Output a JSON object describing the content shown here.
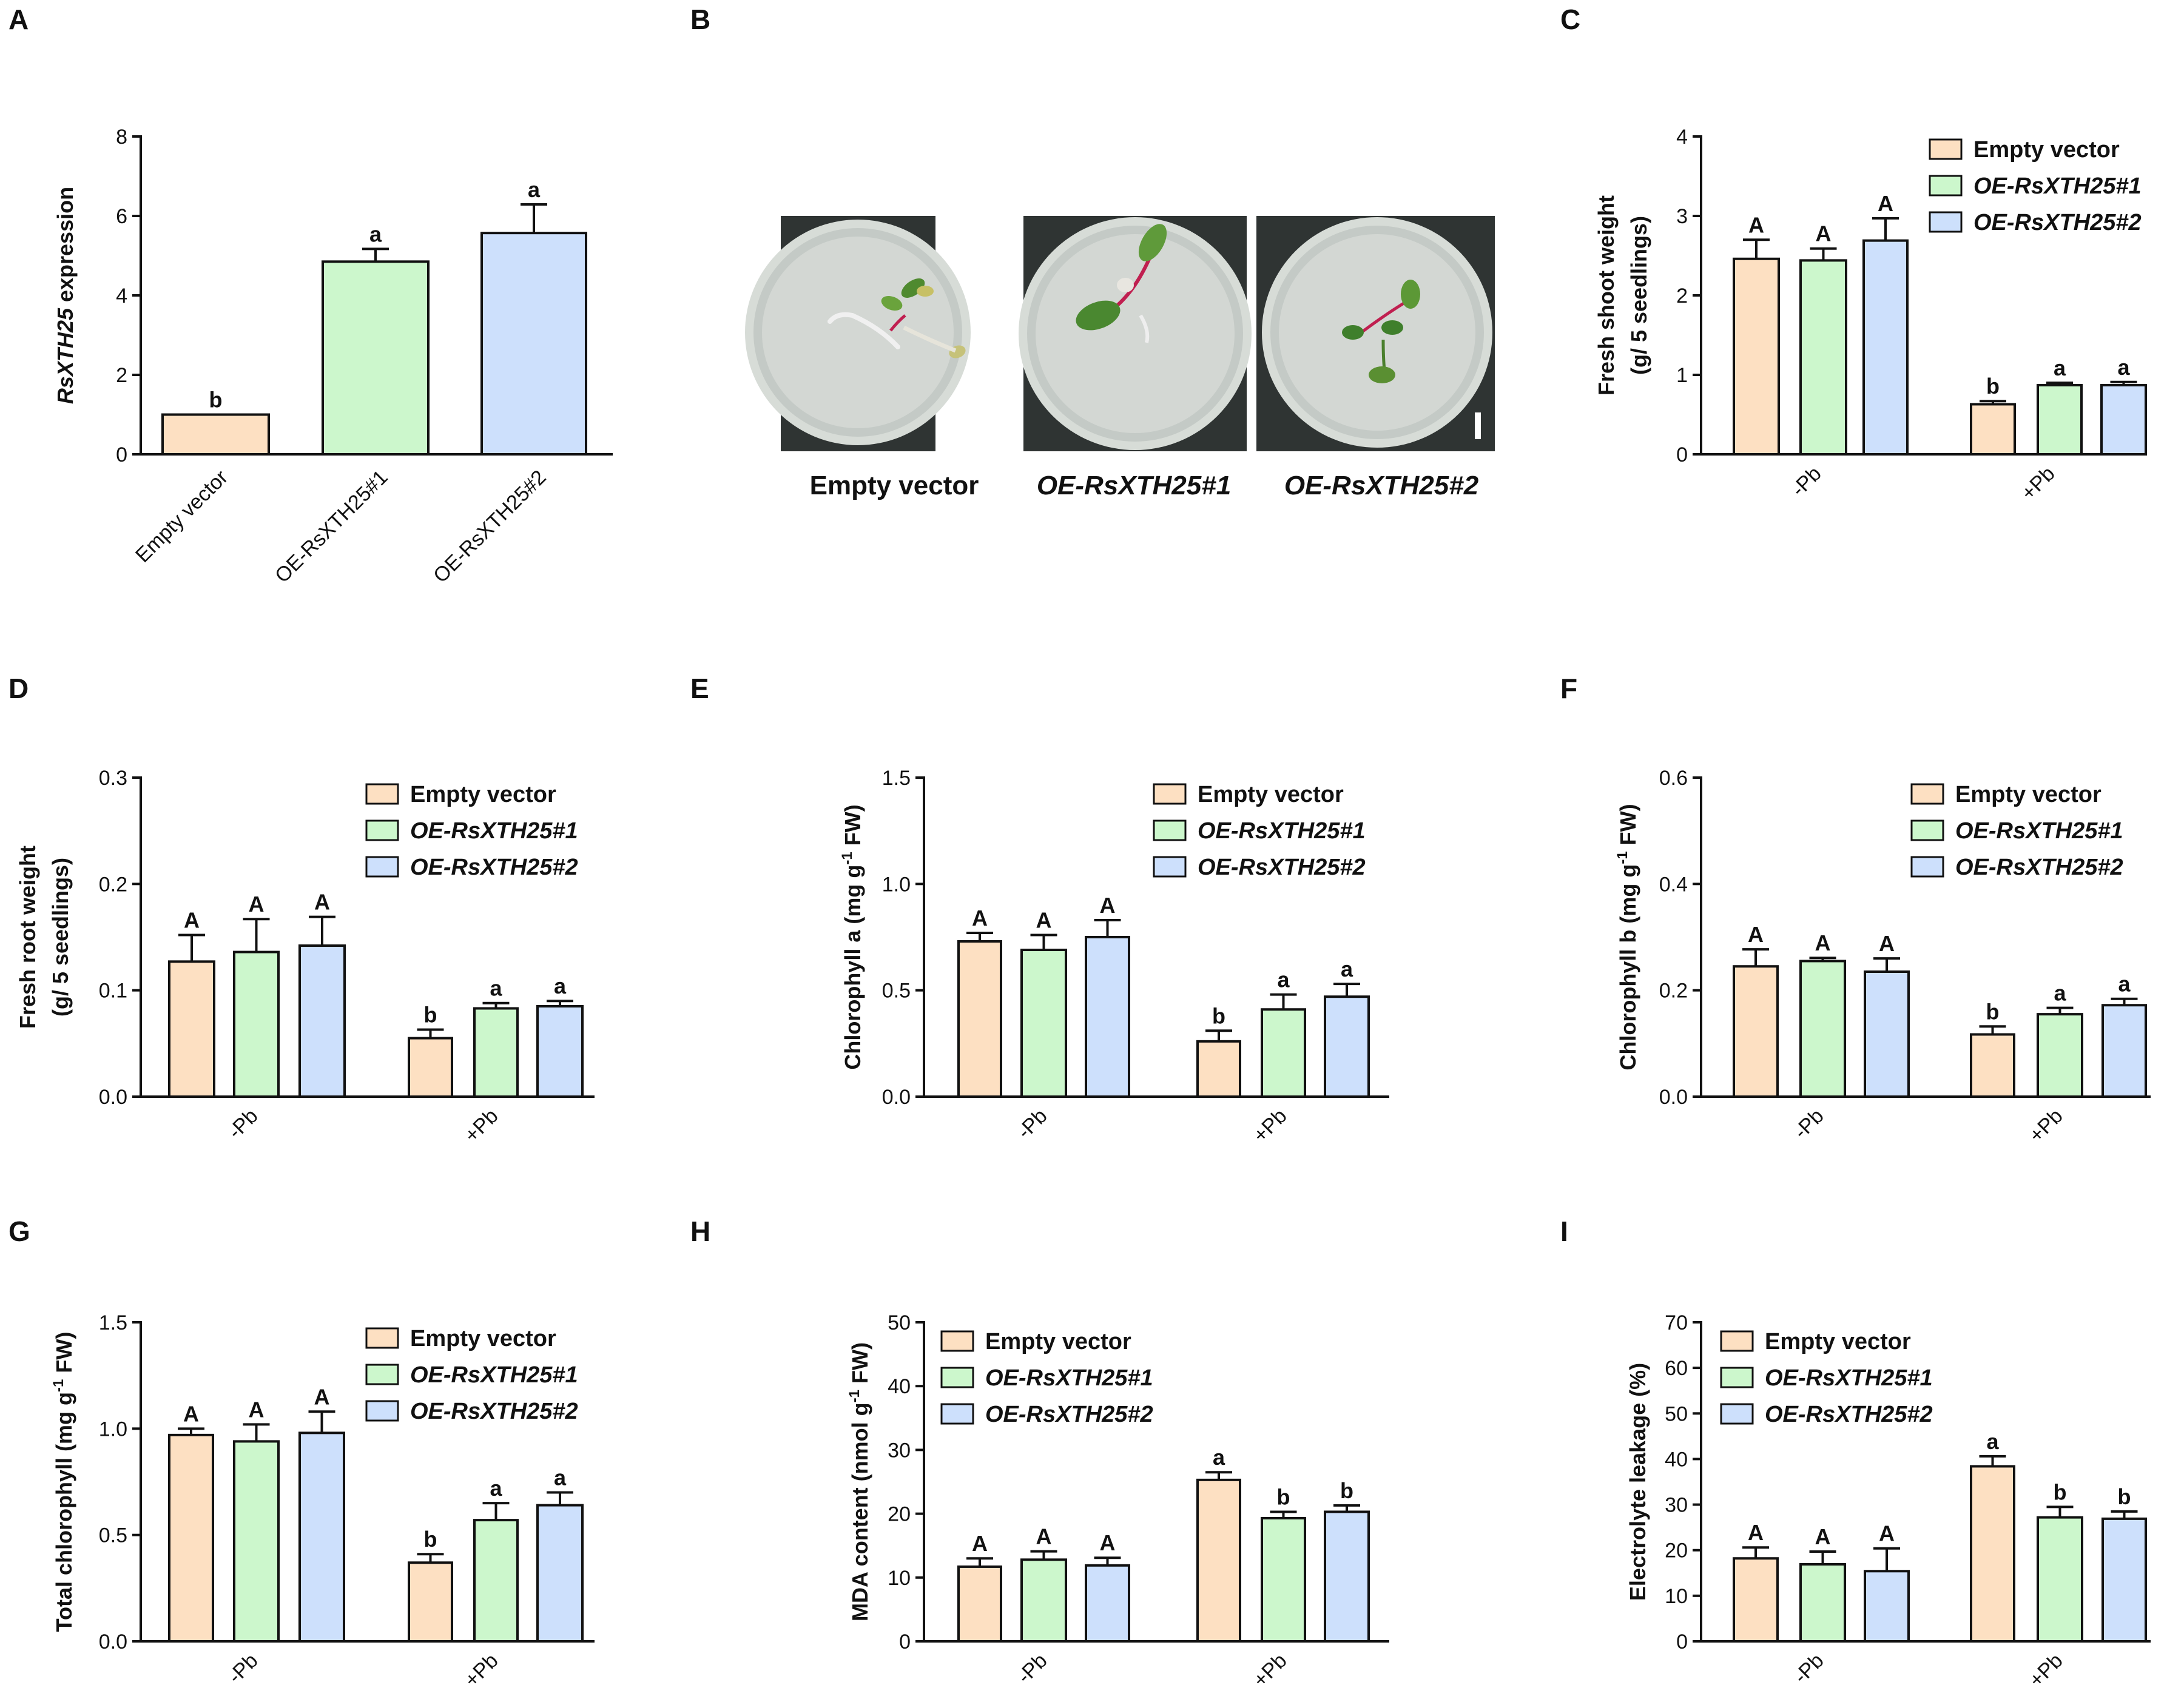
{
  "figure": {
    "legend": [
      "Empty vector",
      "OE-RsXTH25#1",
      "OE-RsXTH25#2"
    ],
    "colors": {
      "empty": "#fde0c2",
      "oe1": "#ccf7cc",
      "oe2": "#cde0fc",
      "stroke": "#111111"
    }
  },
  "photos": {
    "letter": "B",
    "captions": [
      "Empty vector",
      "OE-RsXTH25#1",
      "OE-RsXTH25#2"
    ]
  },
  "chart_data": [
    {
      "letter": "A",
      "type": "bar",
      "ylabel": "RsXTH25 expression",
      "ylabel_italic_part": "RsXTH25",
      "ylabel_rest": " expression",
      "ylim": [
        0,
        8
      ],
      "yticks": [
        0,
        2,
        4,
        6,
        8
      ],
      "ytick_labels": [
        "0",
        "2",
        "4",
        "6",
        "8"
      ],
      "categories": [
        "Empty vector",
        "OE-RsXTH25#1",
        "OE-RsXTH25#2"
      ],
      "values": [
        1.0,
        4.85,
        5.57
      ],
      "errors": [
        0.0,
        0.32,
        0.72
      ],
      "letters": [
        "b",
        "a",
        "a"
      ]
    },
    {
      "letter": "C",
      "type": "bar",
      "ylabel": "Fresh shoot weight|(g/ 5 seedlings)",
      "ylim": [
        0,
        4
      ],
      "yticks": [
        0,
        1,
        2,
        3,
        4
      ],
      "ytick_labels": [
        "0",
        "1",
        "2",
        "3",
        "4"
      ],
      "groups": [
        "-Pb",
        "+Pb"
      ],
      "series": [
        {
          "name": "Empty vector",
          "values": [
            2.46,
            0.63
          ],
          "errors": [
            0.24,
            0.04
          ],
          "letters": [
            "A",
            "b"
          ]
        },
        {
          "name": "OE-RsXTH25#1",
          "values": [
            2.44,
            0.87
          ],
          "errors": [
            0.15,
            0.03
          ],
          "letters": [
            "A",
            "a"
          ]
        },
        {
          "name": "OE-RsXTH25#2",
          "values": [
            2.69,
            0.87
          ],
          "errors": [
            0.28,
            0.04
          ],
          "letters": [
            "A",
            "a"
          ]
        }
      ]
    },
    {
      "letter": "D",
      "type": "bar",
      "ylabel": "Fresh root weight|(g/ 5 seedlings)",
      "ylim": [
        0,
        0.3
      ],
      "yticks": [
        0,
        0.1,
        0.2,
        0.3
      ],
      "ytick_labels": [
        "0.0",
        "0.1",
        "0.2",
        "0.3"
      ],
      "groups": [
        "-Pb",
        "+Pb"
      ],
      "series": [
        {
          "name": "Empty vector",
          "values": [
            0.127,
            0.055
          ],
          "errors": [
            0.025,
            0.008
          ],
          "letters": [
            "A",
            "b"
          ]
        },
        {
          "name": "OE-RsXTH25#1",
          "values": [
            0.136,
            0.083
          ],
          "errors": [
            0.031,
            0.005
          ],
          "letters": [
            "A",
            "a"
          ]
        },
        {
          "name": "OE-RsXTH25#2",
          "values": [
            0.142,
            0.085
          ],
          "errors": [
            0.027,
            0.005
          ],
          "letters": [
            "A",
            "a"
          ]
        }
      ]
    },
    {
      "letter": "E",
      "type": "bar",
      "ylabel": "Chlorophyll a (mg g-1 FW)",
      "ylabel_pre": "Chlorophyll a (mg g",
      "ylabel_sup": "-1",
      "ylabel_post": " FW)",
      "ylim": [
        0,
        1.5
      ],
      "yticks": [
        0,
        0.5,
        1.0,
        1.5
      ],
      "ytick_labels": [
        "0.0",
        "0.5",
        "1.0",
        "1.5"
      ],
      "groups": [
        "-Pb",
        "+Pb"
      ],
      "series": [
        {
          "name": "Empty vector",
          "values": [
            0.73,
            0.26
          ],
          "errors": [
            0.04,
            0.05
          ],
          "letters": [
            "A",
            "b"
          ]
        },
        {
          "name": "OE-RsXTH25#1",
          "values": [
            0.69,
            0.41
          ],
          "errors": [
            0.07,
            0.07
          ],
          "letters": [
            "A",
            "a"
          ]
        },
        {
          "name": "OE-RsXTH25#2",
          "values": [
            0.75,
            0.47
          ],
          "errors": [
            0.08,
            0.06
          ],
          "letters": [
            "A",
            "a"
          ]
        }
      ]
    },
    {
      "letter": "F",
      "type": "bar",
      "ylabel": "Chlorophyll b (mg g-1 FW)",
      "ylabel_pre": "Chlorophyll b (mg g",
      "ylabel_sup": "-1",
      "ylabel_post": " FW)",
      "ylim": [
        0,
        0.6
      ],
      "yticks": [
        0,
        0.2,
        0.4,
        0.6
      ],
      "ytick_labels": [
        "0.0",
        "0.2",
        "0.4",
        "0.6"
      ],
      "groups": [
        "-Pb",
        "+Pb"
      ],
      "series": [
        {
          "name": "Empty vector",
          "values": [
            0.245,
            0.117
          ],
          "errors": [
            0.032,
            0.015
          ],
          "letters": [
            "A",
            "b"
          ]
        },
        {
          "name": "OE-RsXTH25#1",
          "values": [
            0.255,
            0.155
          ],
          "errors": [
            0.006,
            0.012
          ],
          "letters": [
            "A",
            "a"
          ]
        },
        {
          "name": "OE-RsXTH25#2",
          "values": [
            0.235,
            0.172
          ],
          "errors": [
            0.025,
            0.012
          ],
          "letters": [
            "A",
            "a"
          ]
        }
      ]
    },
    {
      "letter": "G",
      "type": "bar",
      "ylabel": "Total chlorophyll (mg g-1 FW)",
      "ylabel_pre": "Total chlorophyll  (mg g",
      "ylabel_sup": "-1",
      "ylabel_post": " FW)",
      "ylim": [
        0,
        1.5
      ],
      "yticks": [
        0,
        0.5,
        1.0,
        1.5
      ],
      "ytick_labels": [
        "0.0",
        "0.5",
        "1.0",
        "1.5"
      ],
      "groups": [
        "-Pb",
        "+Pb"
      ],
      "series": [
        {
          "name": "Empty vector",
          "values": [
            0.97,
            0.37
          ],
          "errors": [
            0.03,
            0.04
          ],
          "letters": [
            "A",
            "b"
          ]
        },
        {
          "name": "OE-RsXTH25#1",
          "values": [
            0.94,
            0.57
          ],
          "errors": [
            0.08,
            0.08
          ],
          "letters": [
            "A",
            "a"
          ]
        },
        {
          "name": "OE-RsXTH25#2",
          "values": [
            0.98,
            0.64
          ],
          "errors": [
            0.1,
            0.06
          ],
          "letters": [
            "A",
            "a"
          ]
        }
      ]
    },
    {
      "letter": "H",
      "type": "bar",
      "ylabel": "MDA content (nmol g-1 FW)",
      "ylabel_pre": "MDA content (nmol g",
      "ylabel_sup": "-1",
      "ylabel_post": " FW)",
      "ylim": [
        0,
        50
      ],
      "yticks": [
        0,
        10,
        20,
        30,
        40,
        50
      ],
      "ytick_labels": [
        "0",
        "10",
        "20",
        "30",
        "40",
        "50"
      ],
      "groups": [
        "-Pb",
        "+Pb"
      ],
      "series": [
        {
          "name": "Empty vector",
          "values": [
            11.7,
            25.3
          ],
          "errors": [
            1.3,
            1.2
          ],
          "letters": [
            "A",
            "a"
          ]
        },
        {
          "name": "OE-RsXTH25#1",
          "values": [
            12.8,
            19.3
          ],
          "errors": [
            1.3,
            1.0
          ],
          "letters": [
            "A",
            "b"
          ]
        },
        {
          "name": "OE-RsXTH25#2",
          "values": [
            11.9,
            20.3
          ],
          "errors": [
            1.2,
            1.0
          ],
          "letters": [
            "A",
            "b"
          ]
        }
      ]
    },
    {
      "letter": "I",
      "type": "bar",
      "ylabel": "Electrolyte leakage (%)",
      "ylim": [
        0,
        70
      ],
      "yticks": [
        0,
        10,
        20,
        30,
        40,
        50,
        60,
        70
      ],
      "ytick_labels": [
        "0",
        "10",
        "20",
        "30",
        "40",
        "50",
        "60",
        "70"
      ],
      "groups": [
        "-Pb",
        "+Pb"
      ],
      "series": [
        {
          "name": "Empty vector",
          "values": [
            18.2,
            38.4
          ],
          "errors": [
            2.4,
            2.2
          ],
          "letters": [
            "A",
            "a"
          ]
        },
        {
          "name": "OE-RsXTH25#1",
          "values": [
            16.9,
            27.2
          ],
          "errors": [
            2.8,
            2.3
          ],
          "letters": [
            "A",
            "b"
          ]
        },
        {
          "name": "OE-RsXTH25#2",
          "values": [
            15.4,
            26.9
          ],
          "errors": [
            5.0,
            1.6
          ],
          "letters": [
            "A",
            "b"
          ]
        }
      ]
    }
  ]
}
